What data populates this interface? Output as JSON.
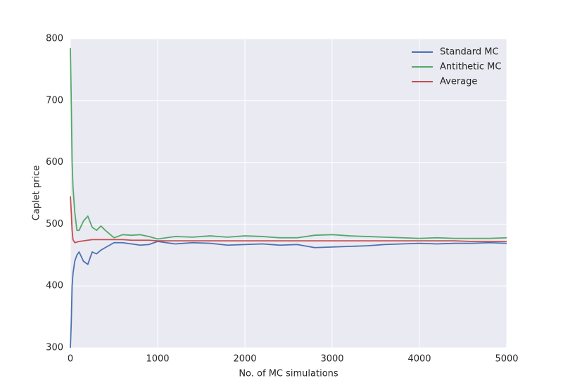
{
  "chart_data": {
    "type": "line",
    "xlabel": "No. of MC simulations",
    "ylabel": "Caplet price",
    "x": [
      0,
      10,
      20,
      30,
      50,
      75,
      100,
      150,
      200,
      250,
      300,
      350,
      400,
      500,
      600,
      700,
      800,
      900,
      1000,
      1200,
      1400,
      1600,
      1800,
      2000,
      2200,
      2400,
      2600,
      2800,
      3000,
      3200,
      3400,
      3600,
      3800,
      4000,
      4200,
      4400,
      4600,
      4800,
      5000
    ],
    "series": [
      {
        "name": "Standard MC",
        "color": "#4c72b0",
        "values": [
          300,
          340,
          400,
          420,
          440,
          450,
          455,
          440,
          435,
          455,
          452,
          458,
          462,
          470,
          470,
          468,
          466,
          467,
          472,
          468,
          470,
          469,
          466,
          467,
          468,
          466,
          467,
          462,
          463,
          464,
          465,
          467,
          468,
          469,
          468,
          469,
          469,
          470,
          469
        ]
      },
      {
        "name": "Antithetic MC",
        "color": "#55a868",
        "values": [
          785,
          700,
          600,
          560,
          520,
          490,
          490,
          505,
          513,
          495,
          490,
          497,
          490,
          478,
          483,
          482,
          483,
          480,
          476,
          480,
          479,
          481,
          479,
          481,
          480,
          478,
          478,
          482,
          483,
          481,
          480,
          479,
          478,
          477,
          478,
          477,
          477,
          477,
          478
        ]
      },
      {
        "name": "Average",
        "color": "#c44e52",
        "values": [
          545,
          520,
          490,
          475,
          470,
          471,
          472,
          473,
          474,
          475,
          475,
          475,
          475,
          475,
          475,
          474,
          474,
          474,
          473,
          473,
          473,
          473,
          473,
          473,
          473,
          473,
          473,
          473,
          473,
          473,
          473,
          473,
          473,
          473,
          473,
          473,
          472,
          472,
          472
        ]
      }
    ],
    "xlim": [
      0,
      5000
    ],
    "xticks": [
      0,
      1000,
      2000,
      3000,
      4000,
      5000
    ],
    "ylim": [
      300,
      800
    ],
    "yticks": [
      300,
      400,
      500,
      600,
      700,
      800
    ],
    "grid": true,
    "legend": "upper right"
  }
}
